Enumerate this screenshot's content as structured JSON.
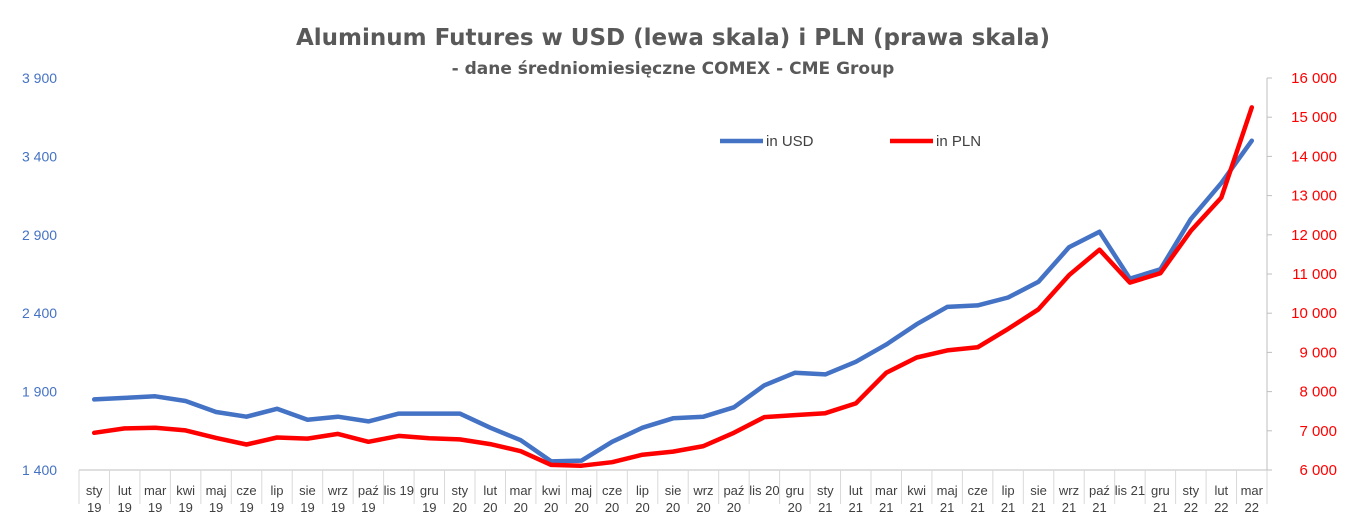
{
  "chart_data": {
    "type": "line",
    "title": "Aluminum Futures w USD (lewa skala) i PLN (prawa skala)",
    "subtitle": "- dane średniomiesięczne  COMEX - CME Group",
    "categories": [
      [
        "sty",
        "19"
      ],
      [
        "lut",
        "19"
      ],
      [
        "mar",
        "19"
      ],
      [
        "kwi",
        "19"
      ],
      [
        "maj",
        "19"
      ],
      [
        "cze",
        "19"
      ],
      [
        "lip",
        "19"
      ],
      [
        "sie",
        "19"
      ],
      [
        "wrz",
        "19"
      ],
      [
        "paź",
        "19"
      ],
      [
        "lis 19",
        ""
      ],
      [
        "gru",
        "19"
      ],
      [
        "sty",
        "20"
      ],
      [
        "lut",
        "20"
      ],
      [
        "mar",
        "20"
      ],
      [
        "kwi",
        "20"
      ],
      [
        "maj",
        "20"
      ],
      [
        "cze",
        "20"
      ],
      [
        "lip",
        "20"
      ],
      [
        "sie",
        "20"
      ],
      [
        "wrz",
        "20"
      ],
      [
        "paź",
        "20"
      ],
      [
        "lis 20",
        ""
      ],
      [
        "gru",
        "20"
      ],
      [
        "sty",
        "21"
      ],
      [
        "lut",
        "21"
      ],
      [
        "mar",
        "21"
      ],
      [
        "kwi",
        "21"
      ],
      [
        "maj",
        "21"
      ],
      [
        "cze",
        "21"
      ],
      [
        "lip",
        "21"
      ],
      [
        "sie",
        "21"
      ],
      [
        "wrz",
        "21"
      ],
      [
        "paź",
        "21"
      ],
      [
        "lis 21",
        ""
      ],
      [
        "gru",
        "21"
      ],
      [
        "sty",
        "22"
      ],
      [
        "lut",
        "22"
      ],
      [
        "mar",
        "22"
      ]
    ],
    "y_left": {
      "min": 1400,
      "max": 3900,
      "ticks": [
        "1 400",
        "1 900",
        "2 400",
        "2 900",
        "3 400",
        "3 900"
      ],
      "color": "#4472C4"
    },
    "y_right": {
      "min": 6000,
      "max": 16000,
      "ticks": [
        "6 000",
        "7 000",
        "8 000",
        "9 000",
        "10 000",
        "11 000",
        "12 000",
        "13 000",
        "14 000",
        "15 000",
        "16 000"
      ],
      "color": "#FF0000"
    },
    "legend_position": "top-right",
    "series": [
      {
        "name": "in USD",
        "axis": "left",
        "color": "#4472C4",
        "values": [
          1850,
          1860,
          1870,
          1840,
          1770,
          1740,
          1790,
          1720,
          1740,
          1710,
          1760,
          1760,
          1760,
          1670,
          1590,
          1455,
          1460,
          1580,
          1670,
          1730,
          1740,
          1800,
          1940,
          2020,
          2010,
          2090,
          2200,
          2330,
          2440,
          2450,
          2500,
          2600,
          2820,
          2920,
          2620,
          2680,
          3000,
          3230,
          3500
        ]
      },
      {
        "name": "in PLN",
        "axis": "right",
        "color": "#FF0000",
        "values": [
          6950,
          7060,
          7080,
          7010,
          6820,
          6650,
          6830,
          6800,
          6920,
          6720,
          6870,
          6810,
          6780,
          6660,
          6480,
          6130,
          6110,
          6200,
          6390,
          6470,
          6610,
          6950,
          7350,
          7400,
          7450,
          7700,
          8480,
          8870,
          9050,
          9130,
          9600,
          10100,
          10970,
          11620,
          10780,
          11020,
          12100,
          12950,
          15250
        ]
      }
    ]
  }
}
